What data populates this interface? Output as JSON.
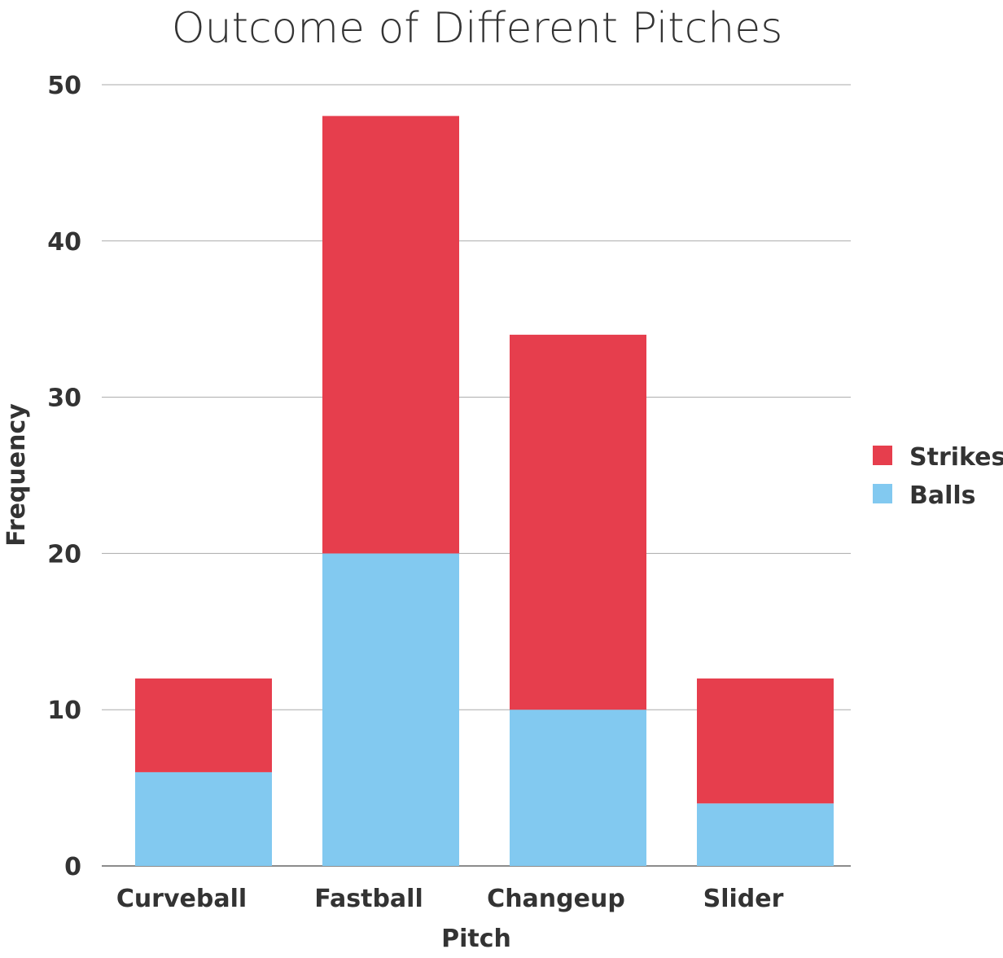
{
  "chart_data": {
    "type": "bar",
    "stacked": true,
    "title": "Outcome of Different Pitches",
    "xlabel": "Pitch",
    "ylabel": "Frequency",
    "categories": [
      "Curveball",
      "Fastball",
      "Changeup",
      "Slider"
    ],
    "ylim": [
      0,
      50
    ],
    "yticks": [
      0,
      10,
      20,
      30,
      40,
      50
    ],
    "grid": true,
    "legend": "right",
    "series": [
      {
        "name": "Balls",
        "values": [
          6,
          20,
          10,
          4
        ],
        "color": "#82C9F0"
      },
      {
        "name": "Strikes",
        "values": [
          6,
          28,
          24,
          8
        ],
        "color": "#E63E4D"
      }
    ],
    "legend_order": [
      "Strikes",
      "Balls"
    ]
  }
}
